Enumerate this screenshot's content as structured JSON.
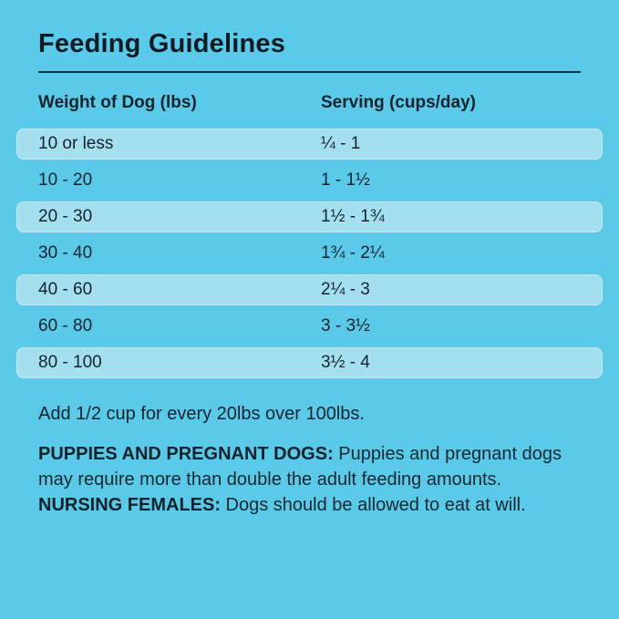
{
  "colors": {
    "background": "#5BC9E8",
    "row_highlight": "#A4DFF0",
    "text": "#13242E",
    "divider": "#14303E"
  },
  "page": {
    "title": "Feeding Guidelines"
  },
  "table": {
    "columns": [
      {
        "label": "Weight of Dog (lbs)"
      },
      {
        "label": "Serving (cups/day)"
      }
    ],
    "rows": [
      {
        "weight": "10 or less",
        "serving": "¼ - 1"
      },
      {
        "weight": "10 - 20",
        "serving": "1 - 1½"
      },
      {
        "weight": "20 - 30",
        "serving": "1½ - 1¾"
      },
      {
        "weight": "30 - 40",
        "serving": "1¾ - 2¼"
      },
      {
        "weight": "40 - 60",
        "serving": "2¼ - 3"
      },
      {
        "weight": "60 - 80",
        "serving": "3 - 3½"
      },
      {
        "weight": "80 - 100",
        "serving": "3½ - 4"
      }
    ]
  },
  "notes": {
    "overage": "Add 1/2 cup for every 20lbs over 100lbs.",
    "puppies_label": "PUPPIES AND PREGNANT DOGS:",
    "puppies_text": " Puppies and pregnant dogs may require more than double the adult feeding amounts. ",
    "nursing_label": "NURSING FEMALES:",
    "nursing_text": " Dogs should be allowed to eat at will."
  }
}
